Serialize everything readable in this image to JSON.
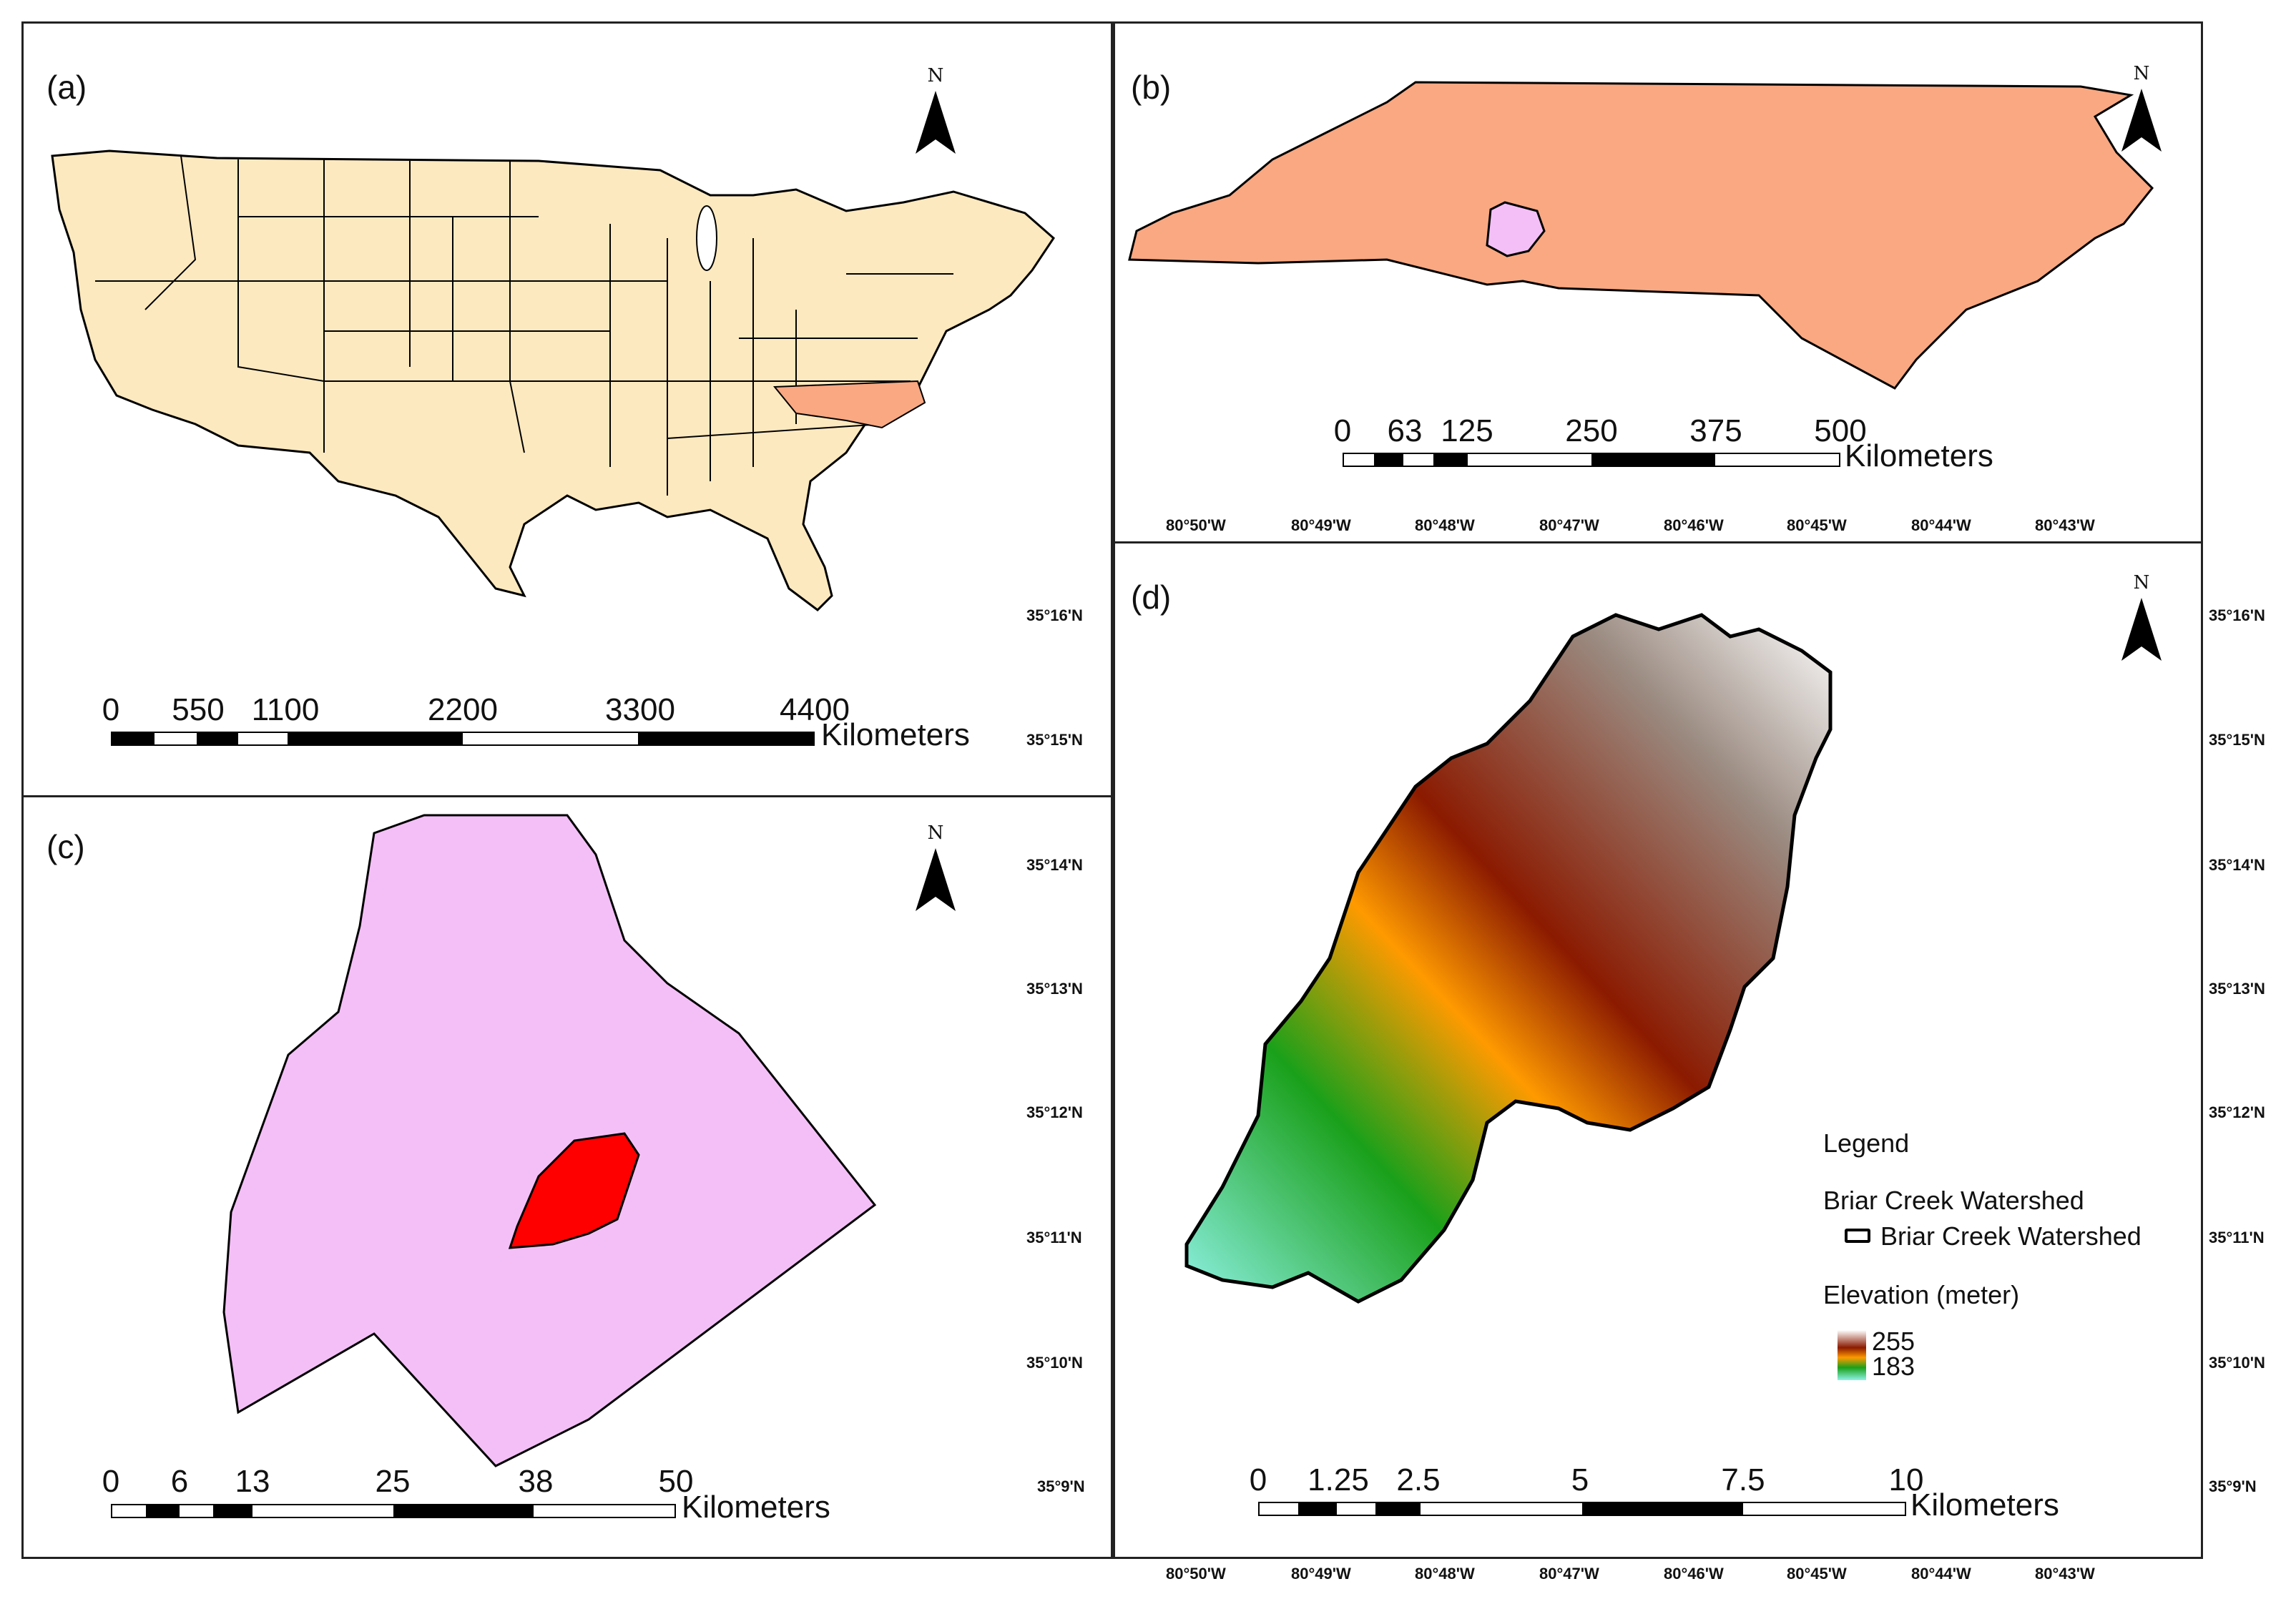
{
  "panels": {
    "a": {
      "label": "(a)",
      "north": "N",
      "scale": {
        "ticks": [
          "0",
          "550",
          "1100",
          "2200",
          "3300",
          "4400"
        ],
        "unit": "Kilometers"
      }
    },
    "b": {
      "label": "(b)",
      "north": "N",
      "scale": {
        "ticks": [
          "0",
          "63",
          "125",
          "250",
          "375",
          "500"
        ],
        "unit": "Kilometers"
      }
    },
    "c": {
      "label": "(c)",
      "north": "N",
      "scale": {
        "ticks": [
          "0",
          "6",
          "13",
          "25",
          "38",
          "50"
        ],
        "unit": "Kilometers"
      }
    },
    "d": {
      "label": "(d)",
      "north": "N",
      "scale": {
        "ticks": [
          "0",
          "1.25",
          "2.5",
          "5",
          "7.5",
          "10"
        ],
        "unit": "Kilometers"
      }
    }
  },
  "longitudes": [
    "80°50'W",
    "80°49'W",
    "80°48'W",
    "80°47'W",
    "80°46'W",
    "80°45'W",
    "80°44'W",
    "80°43'W"
  ],
  "latitudes": [
    "35°16'N",
    "35°15'N",
    "35°14'N",
    "35°13'N",
    "35°12'N",
    "35°11'N",
    "35°10'N",
    "35°9'N"
  ],
  "legend": {
    "title": "Legend",
    "layer_group": "Briar Creek Watershed",
    "layer_item": "Briar Creek Watershed",
    "elevation_title": "Elevation (meter)",
    "elevation_high": "255",
    "elevation_low": "183"
  },
  "colors": {
    "usa_fill": "#fde9bf",
    "nc_fill": "#f9a882",
    "county_fill": "#f4bff7",
    "watershed_fill": "#ff0000",
    "elev_high": "#ffffff",
    "elev_mid_high": "#8b1a00",
    "elev_mid": "#ff9a00",
    "elev_mid_low": "#1aa01a",
    "elev_low": "#8ff2e6"
  }
}
